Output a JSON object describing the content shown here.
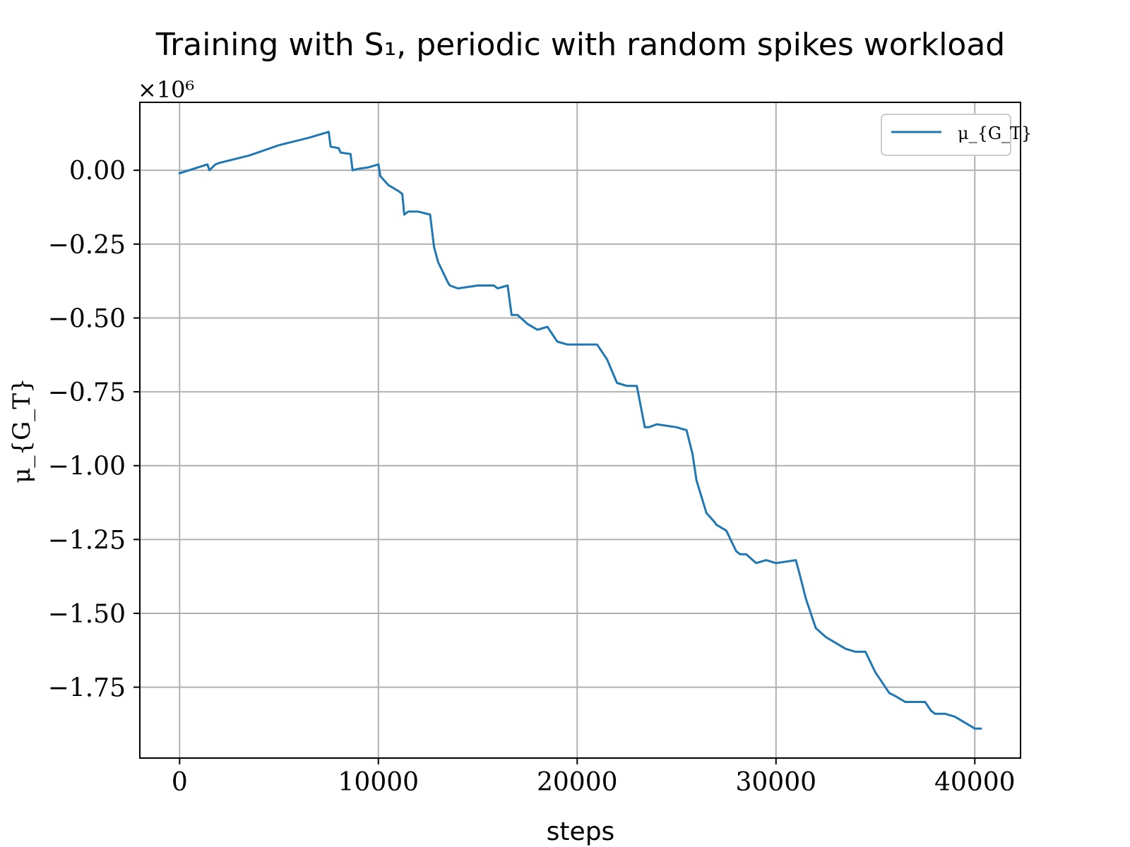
{
  "chart_data": {
    "type": "line",
    "title": "Training with S₁, periodic with random spikes workload",
    "xlabel": "steps",
    "ylabel": "μ_{G_T}",
    "y_multiplier": "×10⁶",
    "xlim": [
      -2000,
      42300
    ],
    "ylim": [
      -1.99,
      0.23
    ],
    "grid": true,
    "legend_position": "top-right",
    "x_ticks": [
      0,
      10000,
      20000,
      30000,
      40000
    ],
    "x_tick_labels": [
      "0",
      "10000",
      "20000",
      "30000",
      "40000"
    ],
    "y_ticks": [
      0.0,
      -0.25,
      -0.5,
      -0.75,
      -1.0,
      -1.25,
      -1.5,
      -1.75
    ],
    "y_tick_labels": [
      "0.00",
      "−0.25",
      "−0.50",
      "−0.75",
      "−1.00",
      "−1.25",
      "−1.50",
      "−1.75"
    ],
    "series": [
      {
        "name": "μ_{G_T}",
        "color": "#1f77b4",
        "x": [
          0,
          1400,
          1500,
          1800,
          2000,
          3500,
          5000,
          6500,
          7500,
          7600,
          8000,
          8100,
          8600,
          8700,
          9000,
          9500,
          10000,
          10100,
          10500,
          11000,
          11200,
          11300,
          11500,
          11700,
          12000,
          12600,
          12800,
          13000,
          13500,
          13600,
          14000,
          15000,
          15800,
          16000,
          16500,
          16700,
          17000,
          17500,
          18000,
          18500,
          19000,
          19500,
          20000,
          20500,
          21000,
          21500,
          22000,
          22500,
          23000,
          23400,
          23600,
          24000,
          25000,
          25500,
          25800,
          26000,
          26500,
          26900,
          27000,
          27500,
          28000,
          28200,
          28500,
          29000,
          29500,
          30000,
          31000,
          31200,
          31500,
          32000,
          32500,
          33000,
          33500,
          34000,
          34500,
          35000,
          35500,
          35700,
          36000,
          36500,
          37000,
          37500,
          37800,
          38000,
          38500,
          39000,
          39500,
          40000,
          40300
        ],
        "y": [
          -0.01,
          0.02,
          0.0,
          0.02,
          0.025,
          0.05,
          0.085,
          0.11,
          0.13,
          0.08,
          0.075,
          0.06,
          0.055,
          0.0,
          0.005,
          0.01,
          0.02,
          -0.02,
          -0.05,
          -0.07,
          -0.08,
          -0.15,
          -0.14,
          -0.14,
          -0.14,
          -0.15,
          -0.26,
          -0.31,
          -0.38,
          -0.39,
          -0.4,
          -0.39,
          -0.39,
          -0.4,
          -0.39,
          -0.49,
          -0.49,
          -0.52,
          -0.54,
          -0.53,
          -0.58,
          -0.59,
          -0.59,
          -0.59,
          -0.59,
          -0.64,
          -0.72,
          -0.73,
          -0.73,
          -0.87,
          -0.87,
          -0.86,
          -0.87,
          -0.88,
          -0.96,
          -1.05,
          -1.16,
          -1.19,
          -1.2,
          -1.22,
          -1.29,
          -1.3,
          -1.3,
          -1.33,
          -1.32,
          -1.33,
          -1.32,
          -1.37,
          -1.45,
          -1.55,
          -1.58,
          -1.6,
          -1.62,
          -1.63,
          -1.63,
          -1.7,
          -1.75,
          -1.77,
          -1.78,
          -1.8,
          -1.8,
          -1.8,
          -1.83,
          -1.84,
          -1.84,
          -1.85,
          -1.87,
          -1.89,
          -1.89
        ]
      }
    ]
  }
}
